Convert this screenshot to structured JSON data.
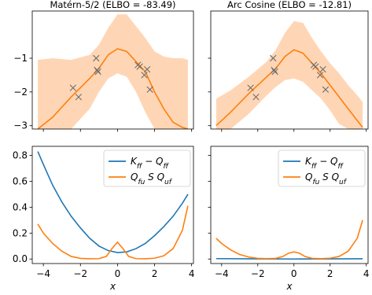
{
  "chart_data": [
    {
      "type": "line",
      "panel": "top-left",
      "title": "Matérn-5/2 (ELBO = -83.49)",
      "xlabel": "",
      "ylabel": "",
      "xlim": [
        -4.6,
        4.1
      ],
      "ylim": [
        -3.1,
        0.4
      ],
      "yticks": [
        -3,
        -2,
        -1
      ],
      "yticklabels": [
        "−3",
        "−2",
        "−1"
      ],
      "xticks": [
        -4,
        -2,
        0,
        2,
        4
      ],
      "xticklabels": [],
      "grid": false,
      "colors": {
        "mean": "#ff7f0e",
        "band": "#ffcfa8",
        "points": "#6e6e6e"
      },
      "mean": {
        "x": [
          -4.3,
          -3.5,
          -2.5,
          -1.5,
          -1.0,
          -0.5,
          0.0,
          0.5,
          1.0,
          1.5,
          2.0,
          2.5,
          3.0,
          3.5,
          3.8
        ],
        "y": [
          -3.1,
          -2.75,
          -2.15,
          -1.6,
          -1.3,
          -0.9,
          -0.72,
          -0.8,
          -1.1,
          -1.4,
          -2.0,
          -2.5,
          -2.9,
          -3.05,
          -3.1
        ]
      },
      "band": {
        "x": [
          -4.3,
          -3.5,
          -2.5,
          -1.5,
          -1.0,
          -0.5,
          0.0,
          0.5,
          1.0,
          1.5,
          2.0,
          2.5,
          3.0,
          3.5,
          3.8
        ],
        "upper": [
          -1.05,
          -1.0,
          -1.05,
          -0.9,
          -0.6,
          -0.1,
          0.3,
          0.3,
          -0.05,
          -0.4,
          -0.8,
          -0.95,
          -1.0,
          -1.0,
          -1.05
        ],
        "lower": [
          -3.1,
          -3.1,
          -3.1,
          -2.5,
          -2.0,
          -1.6,
          -1.45,
          -1.55,
          -2.0,
          -2.6,
          -3.1,
          -3.1,
          -3.1,
          -3.1,
          -3.1
        ]
      },
      "points": {
        "x": [
          -2.4,
          -2.1,
          -1.15,
          -1.1,
          -1.05,
          1.1,
          1.2,
          1.45,
          1.6,
          1.75
        ],
        "y": [
          -1.88,
          -2.15,
          -1.0,
          -1.35,
          -1.4,
          -1.2,
          -1.25,
          -1.5,
          -1.33,
          -1.93
        ]
      }
    },
    {
      "type": "line",
      "panel": "top-right",
      "title": "Arc Cosine (ELBO = -12.81)",
      "xlabel": "",
      "ylabel": "",
      "xlim": [
        -4.6,
        4.1
      ],
      "ylim": [
        -3.1,
        0.4
      ],
      "yticks": [
        -3,
        -2,
        -1
      ],
      "yticklabels": [],
      "xticks": [
        -4,
        -2,
        0,
        2,
        4
      ],
      "xticklabels": [],
      "grid": false,
      "colors": {
        "mean": "#ff7f0e",
        "band": "#ffcfa8",
        "points": "#6e6e6e"
      },
      "mean": {
        "x": [
          -4.3,
          -3.5,
          -2.5,
          -1.5,
          -1.0,
          -0.5,
          0.0,
          0.5,
          1.0,
          1.5,
          2.0,
          2.5,
          3.0,
          3.5,
          3.8
        ],
        "y": [
          -3.0,
          -2.6,
          -2.05,
          -1.55,
          -1.3,
          -0.95,
          -0.75,
          -0.85,
          -1.15,
          -1.45,
          -1.8,
          -2.15,
          -2.5,
          -2.85,
          -3.05
        ]
      },
      "band": {
        "x": [
          -4.3,
          -3.5,
          -2.5,
          -1.5,
          -1.0,
          -0.5,
          0.0,
          0.5,
          1.0,
          1.5,
          2.0,
          2.5,
          3.0,
          3.5,
          3.8
        ],
        "upper": [
          -2.2,
          -1.95,
          -1.55,
          -1.1,
          -0.75,
          -0.25,
          0.1,
          0.05,
          -0.4,
          -0.8,
          -1.15,
          -1.45,
          -1.8,
          -2.1,
          -2.3
        ],
        "lower": [
          -3.1,
          -3.1,
          -2.65,
          -2.1,
          -1.85,
          -1.65,
          -1.6,
          -1.7,
          -1.95,
          -2.2,
          -2.55,
          -2.95,
          -3.1,
          -3.1,
          -3.1
        ]
      },
      "points": {
        "x": [
          -2.4,
          -2.1,
          -1.15,
          -1.1,
          -1.05,
          1.1,
          1.2,
          1.45,
          1.6,
          1.75
        ],
        "y": [
          -1.88,
          -2.15,
          -1.0,
          -1.35,
          -1.4,
          -1.2,
          -1.25,
          -1.5,
          -1.33,
          -1.93
        ]
      }
    },
    {
      "type": "line",
      "panel": "bottom-left",
      "title": "",
      "xlabel": "x",
      "ylabel": "",
      "xlim": [
        -4.6,
        4.1
      ],
      "ylim": [
        -0.035,
        0.87
      ],
      "yticks": [
        0.0,
        0.2,
        0.4,
        0.6,
        0.8
      ],
      "yticklabels": [
        "0.0",
        "0.2",
        "0.4",
        "0.6",
        "0.8"
      ],
      "xticks": [
        -4,
        -2,
        0,
        2,
        4
      ],
      "xticklabels": [
        "−4",
        "−2",
        "0",
        "2",
        "4"
      ],
      "grid": false,
      "legend": {
        "placement": "top-right"
      },
      "series": [
        {
          "name": "K_ff − Q_ff",
          "color": "#1f77b4",
          "x": [
            -4.3,
            -4.0,
            -3.5,
            -3.0,
            -2.5,
            -2.0,
            -1.5,
            -1.0,
            -0.5,
            0.0,
            0.5,
            1.0,
            1.5,
            2.0,
            2.5,
            3.0,
            3.5,
            3.8
          ],
          "y": [
            0.83,
            0.73,
            0.57,
            0.44,
            0.33,
            0.24,
            0.16,
            0.1,
            0.065,
            0.05,
            0.055,
            0.08,
            0.12,
            0.18,
            0.25,
            0.33,
            0.43,
            0.5
          ]
        },
        {
          "name": "Q_fu S Q_uf",
          "color": "#ff7f0e",
          "x": [
            -4.3,
            -4.0,
            -3.5,
            -3.0,
            -2.5,
            -2.0,
            -1.5,
            -1.0,
            -0.6,
            -0.3,
            0.0,
            0.3,
            0.6,
            1.0,
            1.5,
            2.0,
            2.5,
            3.0,
            3.5,
            3.8
          ],
          "y": [
            0.27,
            0.2,
            0.12,
            0.06,
            0.02,
            0.005,
            0.002,
            0.003,
            0.02,
            0.08,
            0.13,
            0.08,
            0.02,
            0.003,
            0.002,
            0.006,
            0.025,
            0.08,
            0.22,
            0.41
          ]
        }
      ]
    },
    {
      "type": "line",
      "panel": "bottom-right",
      "title": "",
      "xlabel": "x",
      "ylabel": "",
      "xlim": [
        -4.6,
        4.1
      ],
      "ylim": [
        -0.035,
        0.87
      ],
      "yticks": [
        0.0,
        0.2,
        0.4,
        0.6,
        0.8
      ],
      "yticklabels": [],
      "xticks": [
        -4,
        -2,
        0,
        2,
        4
      ],
      "xticklabels": [
        "−4",
        "−2",
        "0",
        "2",
        "4"
      ],
      "grid": false,
      "legend": {
        "placement": "top-right"
      },
      "series": [
        {
          "name": "K_ff − Q_ff",
          "color": "#1f77b4",
          "x": [
            -4.3,
            -2.0,
            0.0,
            2.0,
            3.8
          ],
          "y": [
            0.003,
            0.001,
            0.0,
            0.001,
            0.002
          ]
        },
        {
          "name": "Q_fu S Q_uf",
          "color": "#ff7f0e",
          "x": [
            -4.3,
            -4.0,
            -3.5,
            -3.0,
            -2.5,
            -2.0,
            -1.5,
            -1.0,
            -0.6,
            -0.3,
            0.0,
            0.3,
            0.6,
            1.0,
            1.5,
            2.0,
            2.5,
            3.0,
            3.5,
            3.8
          ],
          "y": [
            0.16,
            0.12,
            0.07,
            0.035,
            0.015,
            0.005,
            0.003,
            0.005,
            0.02,
            0.045,
            0.055,
            0.045,
            0.02,
            0.005,
            0.003,
            0.006,
            0.02,
            0.06,
            0.16,
            0.3
          ]
        }
      ]
    }
  ]
}
